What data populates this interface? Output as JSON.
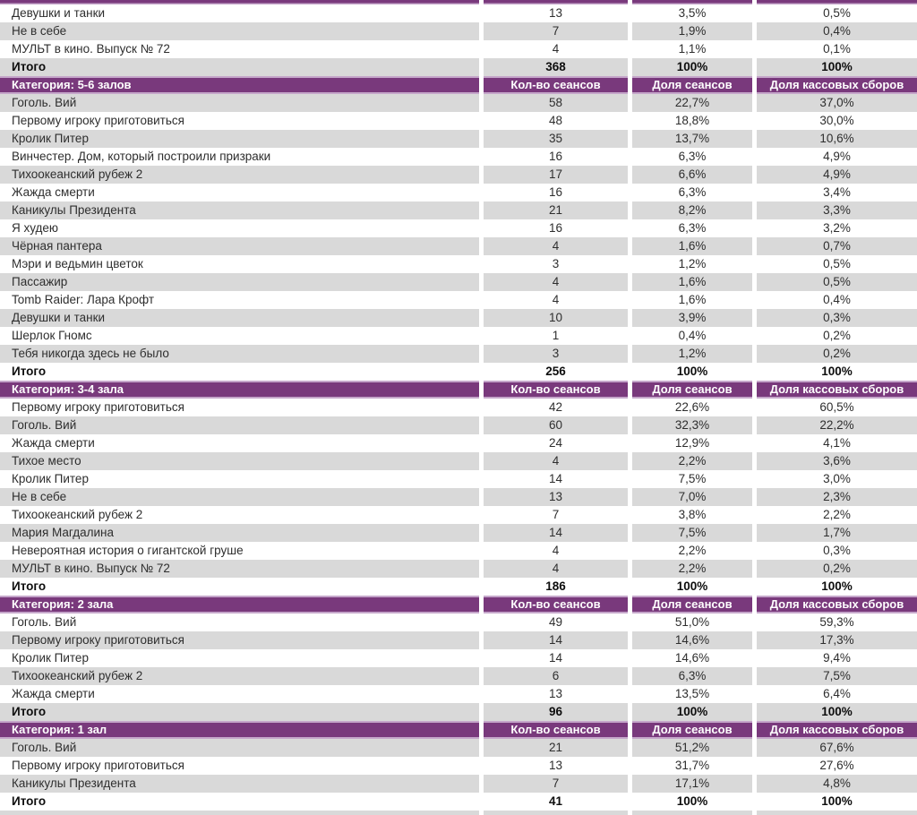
{
  "colors": {
    "category_header_bg": "#79397C",
    "category_header_border": "#C5A6CA",
    "category_header_text": "#FFFFFF",
    "zebra_gray": "#D9D9D9",
    "row_text": "#2E2E2E"
  },
  "table": {
    "columns": [
      "Кол-во сеансов",
      "Доля сеансов",
      "Доля кассовых сборов"
    ],
    "sections": [
      {
        "category": "",
        "header_visible": false,
        "rows": [
          {
            "title": "Девушки и танки",
            "sessions": "13",
            "sessions_share": "3,5%",
            "boxoffice_share": "0,5%"
          },
          {
            "title": "Не в себе",
            "sessions": "7",
            "sessions_share": "1,9%",
            "boxoffice_share": "0,4%"
          },
          {
            "title": "МУЛЬТ в кино. Выпуск № 72",
            "sessions": "4",
            "sessions_share": "1,1%",
            "boxoffice_share": "0,1%"
          },
          {
            "title": "Итого",
            "sessions": "368",
            "sessions_share": "100%",
            "boxoffice_share": "100%",
            "total": true
          }
        ]
      },
      {
        "category": "Категория: 5-6 залов",
        "header_visible": true,
        "rows": [
          {
            "title": "Гоголь. Вий",
            "sessions": "58",
            "sessions_share": "22,7%",
            "boxoffice_share": "37,0%"
          },
          {
            "title": "Первому игроку приготовиться",
            "sessions": "48",
            "sessions_share": "18,8%",
            "boxoffice_share": "30,0%"
          },
          {
            "title": "Кролик Питер",
            "sessions": "35",
            "sessions_share": "13,7%",
            "boxoffice_share": "10,6%"
          },
          {
            "title": "Винчестер. Дом, который построили призраки",
            "sessions": "16",
            "sessions_share": "6,3%",
            "boxoffice_share": "4,9%"
          },
          {
            "title": "Тихоокеанский рубеж 2",
            "sessions": "17",
            "sessions_share": "6,6%",
            "boxoffice_share": "4,9%"
          },
          {
            "title": "Жажда смерти",
            "sessions": "16",
            "sessions_share": "6,3%",
            "boxoffice_share": "3,4%"
          },
          {
            "title": "Каникулы Президента",
            "sessions": "21",
            "sessions_share": "8,2%",
            "boxoffice_share": "3,3%"
          },
          {
            "title": "Я худею",
            "sessions": "16",
            "sessions_share": "6,3%",
            "boxoffice_share": "3,2%"
          },
          {
            "title": "Чёрная пантера",
            "sessions": "4",
            "sessions_share": "1,6%",
            "boxoffice_share": "0,7%"
          },
          {
            "title": "Мэри и ведьмин цветок",
            "sessions": "3",
            "sessions_share": "1,2%",
            "boxoffice_share": "0,5%"
          },
          {
            "title": "Пассажир",
            "sessions": "4",
            "sessions_share": "1,6%",
            "boxoffice_share": "0,5%"
          },
          {
            "title": "Tomb Raider: Лара Крофт",
            "sessions": "4",
            "sessions_share": "1,6%",
            "boxoffice_share": "0,4%"
          },
          {
            "title": "Девушки и танки",
            "sessions": "10",
            "sessions_share": "3,9%",
            "boxoffice_share": "0,3%"
          },
          {
            "title": "Шерлок Гномс",
            "sessions": "1",
            "sessions_share": "0,4%",
            "boxoffice_share": "0,2%"
          },
          {
            "title": "Тебя никогда здесь не было",
            "sessions": "3",
            "sessions_share": "1,2%",
            "boxoffice_share": "0,2%"
          },
          {
            "title": "Итого",
            "sessions": "256",
            "sessions_share": "100%",
            "boxoffice_share": "100%",
            "total": true
          }
        ]
      },
      {
        "category": "Категория: 3-4 зала",
        "header_visible": true,
        "rows": [
          {
            "title": "Первому игроку приготовиться",
            "sessions": "42",
            "sessions_share": "22,6%",
            "boxoffice_share": "60,5%"
          },
          {
            "title": "Гоголь. Вий",
            "sessions": "60",
            "sessions_share": "32,3%",
            "boxoffice_share": "22,2%"
          },
          {
            "title": "Жажда смерти",
            "sessions": "24",
            "sessions_share": "12,9%",
            "boxoffice_share": "4,1%"
          },
          {
            "title": "Тихое место",
            "sessions": "4",
            "sessions_share": "2,2%",
            "boxoffice_share": "3,6%"
          },
          {
            "title": "Кролик Питер",
            "sessions": "14",
            "sessions_share": "7,5%",
            "boxoffice_share": "3,0%"
          },
          {
            "title": "Не в себе",
            "sessions": "13",
            "sessions_share": "7,0%",
            "boxoffice_share": "2,3%"
          },
          {
            "title": "Тихоокеанский рубеж 2",
            "sessions": "7",
            "sessions_share": "3,8%",
            "boxoffice_share": "2,2%"
          },
          {
            "title": "Мария Магдалина",
            "sessions": "14",
            "sessions_share": "7,5%",
            "boxoffice_share": "1,7%"
          },
          {
            "title": "Невероятная история о гигантской груше",
            "sessions": "4",
            "sessions_share": "2,2%",
            "boxoffice_share": "0,3%"
          },
          {
            "title": "МУЛЬТ в кино. Выпуск № 72",
            "sessions": "4",
            "sessions_share": "2,2%",
            "boxoffice_share": "0,2%"
          },
          {
            "title": "Итого",
            "sessions": "186",
            "sessions_share": "100%",
            "boxoffice_share": "100%",
            "total": true
          }
        ]
      },
      {
        "category": "Категория: 2 зала",
        "header_visible": true,
        "rows": [
          {
            "title": "Гоголь. Вий",
            "sessions": "49",
            "sessions_share": "51,0%",
            "boxoffice_share": "59,3%"
          },
          {
            "title": "Первому игроку приготовиться",
            "sessions": "14",
            "sessions_share": "14,6%",
            "boxoffice_share": "17,3%"
          },
          {
            "title": "Кролик Питер",
            "sessions": "14",
            "sessions_share": "14,6%",
            "boxoffice_share": "9,4%"
          },
          {
            "title": "Тихоокеанский рубеж 2",
            "sessions": "6",
            "sessions_share": "6,3%",
            "boxoffice_share": "7,5%"
          },
          {
            "title": "Жажда смерти",
            "sessions": "13",
            "sessions_share": "13,5%",
            "boxoffice_share": "6,4%"
          },
          {
            "title": "Итого",
            "sessions": "96",
            "sessions_share": "100%",
            "boxoffice_share": "100%",
            "total": true
          }
        ]
      },
      {
        "category": "Категория: 1 зал",
        "header_visible": true,
        "rows": [
          {
            "title": "Гоголь. Вий",
            "sessions": "21",
            "sessions_share": "51,2%",
            "boxoffice_share": "67,6%"
          },
          {
            "title": "Первому игроку приготовиться",
            "sessions": "13",
            "sessions_share": "31,7%",
            "boxoffice_share": "27,6%"
          },
          {
            "title": "Каникулы Президента",
            "sessions": "7",
            "sessions_share": "17,1%",
            "boxoffice_share": "4,8%"
          },
          {
            "title": "Итого",
            "sessions": "41",
            "sessions_share": "100%",
            "boxoffice_share": "100%",
            "total": true
          }
        ]
      }
    ]
  }
}
